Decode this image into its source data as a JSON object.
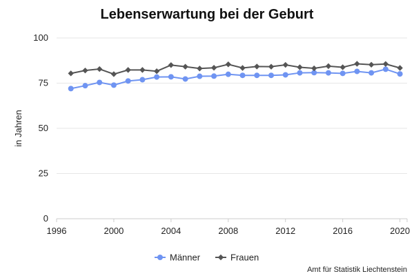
{
  "chart_data": {
    "type": "line",
    "title": "Lebenserwartung bei der Geburt",
    "xlabel": "",
    "ylabel": "in Jahren",
    "xlim": [
      1996,
      2020.5
    ],
    "ylim": [
      0,
      100
    ],
    "xticks": [
      1996,
      2000,
      2004,
      2008,
      2012,
      2016,
      2020
    ],
    "yticks": [
      0,
      25,
      50,
      75,
      100
    ],
    "grid": true,
    "legend_position": "bottom",
    "source": "Amt für Statistik Liechtenstein",
    "x": [
      1997,
      1998,
      1999,
      2000,
      2001,
      2002,
      2003,
      2004,
      2005,
      2006,
      2007,
      2008,
      2009,
      2010,
      2011,
      2012,
      2013,
      2014,
      2015,
      2016,
      2017,
      2018,
      2019,
      2020
    ],
    "series": [
      {
        "name": "Männer",
        "color": "#6f94f2",
        "marker": "circle",
        "values": [
          72.0,
          73.6,
          75.4,
          73.9,
          76.2,
          76.9,
          78.4,
          78.5,
          77.3,
          78.8,
          78.9,
          79.9,
          79.3,
          79.3,
          79.3,
          79.6,
          80.7,
          80.8,
          80.7,
          80.4,
          81.5,
          80.7,
          82.7,
          80.1
        ]
      },
      {
        "name": "Frauen",
        "color": "#555555",
        "marker": "diamond",
        "values": [
          80.4,
          82.0,
          82.8,
          80.0,
          82.3,
          82.3,
          81.6,
          85.0,
          84.1,
          83.1,
          83.5,
          85.4,
          83.4,
          84.2,
          84.1,
          85.1,
          83.8,
          83.2,
          84.4,
          83.8,
          85.7,
          85.2,
          85.6,
          83.4
        ]
      }
    ]
  }
}
